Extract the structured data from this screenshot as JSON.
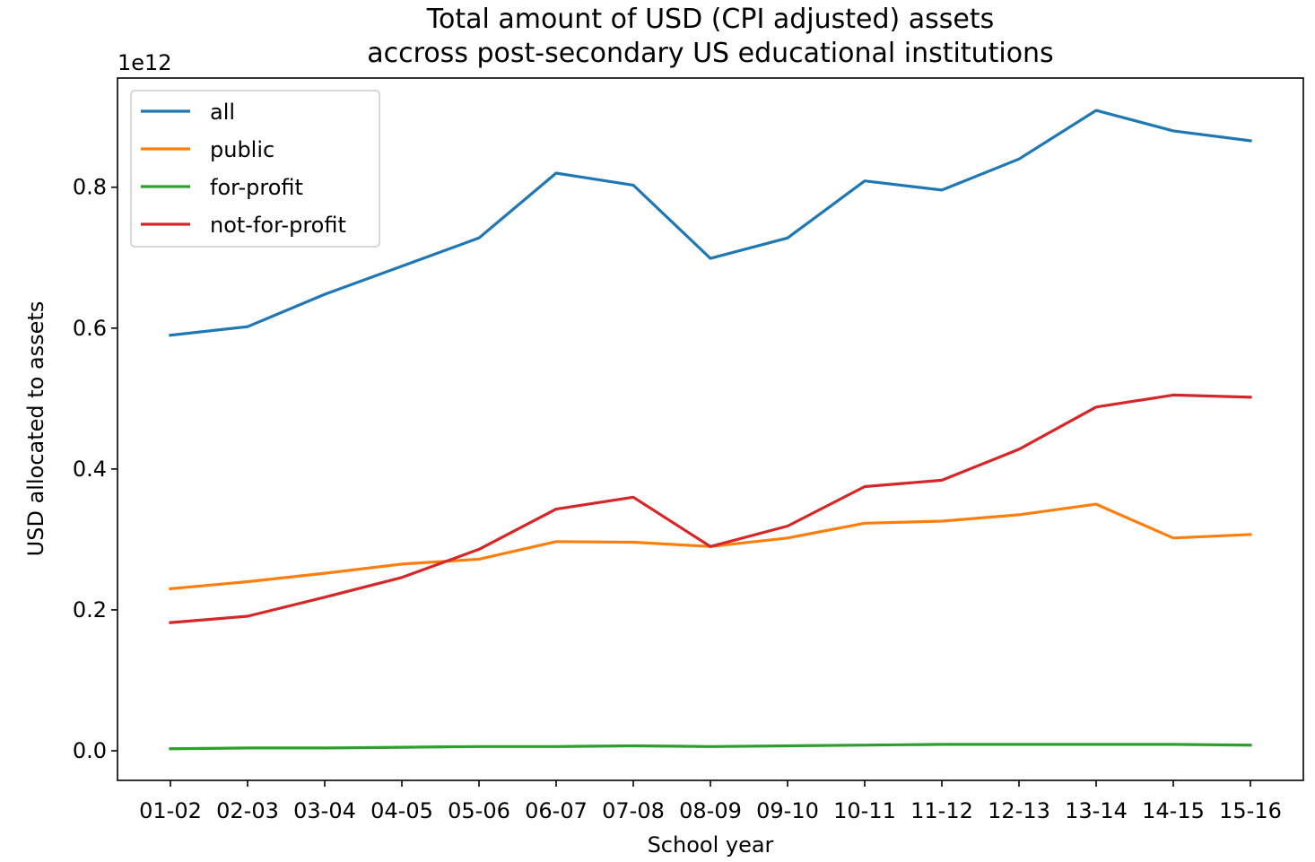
{
  "chart_data": {
    "type": "line",
    "title_lines": [
      "Total amount of USD (CPI adjusted) assets",
      "accross post-secondary US educational institutions"
    ],
    "xlabel": "School year",
    "ylabel": "USD allocated to assets",
    "y_offset_label": "1e12",
    "categories": [
      "01-02",
      "02-03",
      "03-04",
      "04-05",
      "05-06",
      "06-07",
      "07-08",
      "08-09",
      "09-10",
      "10-11",
      "11-12",
      "12-13",
      "13-14",
      "14-15",
      "15-16"
    ],
    "yticks": [
      0.0,
      0.2,
      0.4,
      0.6,
      0.8
    ],
    "ytick_labels": [
      "0.0",
      "0.2",
      "0.4",
      "0.6",
      "0.8"
    ],
    "ylim": [
      -0.042,
      0.955
    ],
    "y_unit_multiplier": 1000000000000.0,
    "grid": false,
    "legend_position": "top-left",
    "series": [
      {
        "name": "all",
        "color": "#1f77b4",
        "values": [
          0.59,
          0.602,
          0.648,
          0.688,
          0.728,
          0.82,
          0.803,
          0.699,
          0.728,
          0.809,
          0.796,
          0.84,
          0.909,
          0.88,
          0.866
        ]
      },
      {
        "name": "public",
        "color": "#ff7f0e",
        "values": [
          0.23,
          0.24,
          0.252,
          0.265,
          0.272,
          0.297,
          0.296,
          0.29,
          0.302,
          0.323,
          0.326,
          0.335,
          0.35,
          0.302,
          0.307
        ]
      },
      {
        "name": "for-profit",
        "color": "#2ca02c",
        "values": [
          0.003,
          0.004,
          0.004,
          0.005,
          0.006,
          0.006,
          0.007,
          0.006,
          0.007,
          0.008,
          0.009,
          0.009,
          0.009,
          0.009,
          0.008
        ]
      },
      {
        "name": "not-for-profit",
        "color": "#d62728",
        "values": [
          0.182,
          0.191,
          0.218,
          0.246,
          0.286,
          0.343,
          0.36,
          0.29,
          0.319,
          0.375,
          0.384,
          0.428,
          0.488,
          0.505,
          0.502
        ]
      }
    ]
  }
}
